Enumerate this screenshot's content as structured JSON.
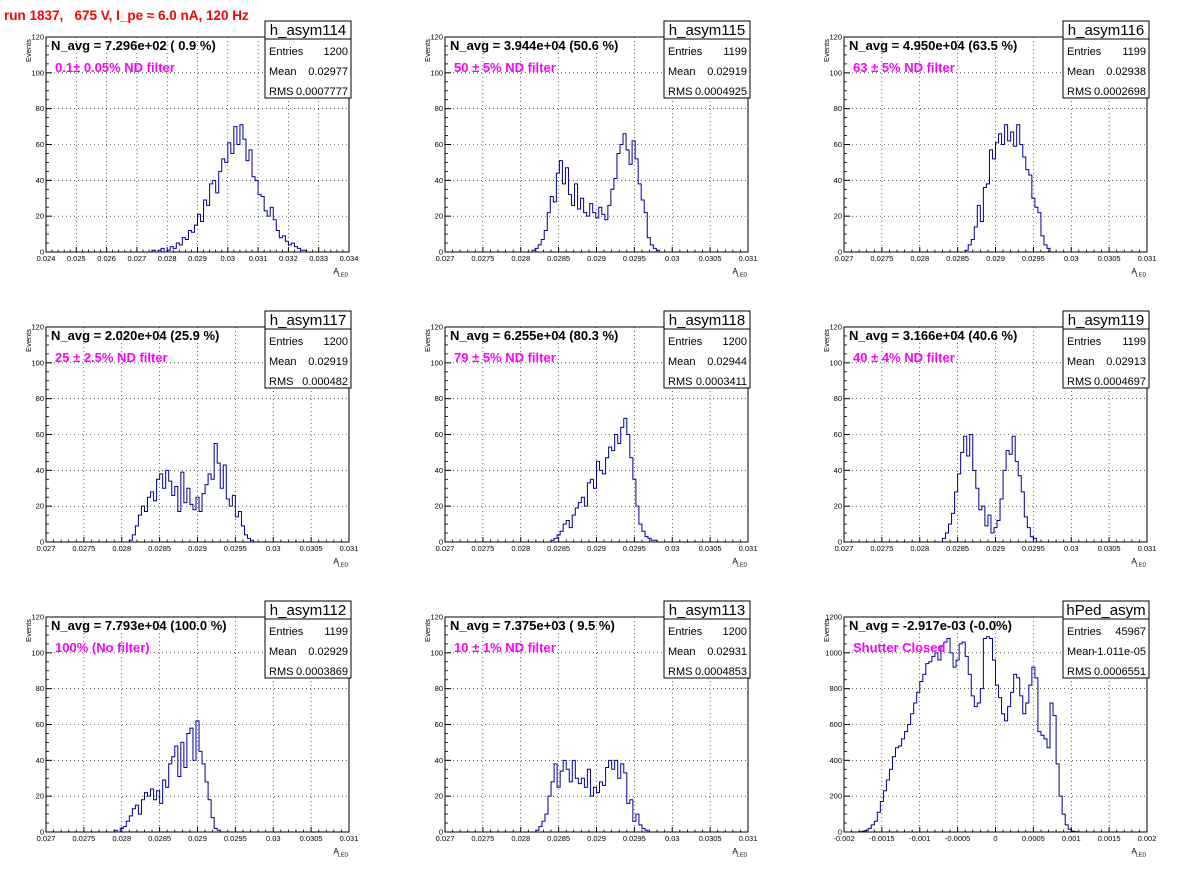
{
  "page_title": "run 1837,   675 V, I_pe ≈ 6.0 nA, 120 Hz",
  "colors": {
    "histogram": "#000099",
    "filter_label": "#ff00ff",
    "title": "#ff0000"
  },
  "chart_data": [
    {
      "type": "histogram",
      "name": "h_asym114",
      "annotation": "N_avg = 7.296e+02 ( 0.9 %)",
      "filter": "0.1± 0.05% ND filter",
      "stats": {
        "entries_label": "Entries",
        "entries": "1200",
        "mean_label": "Mean",
        "mean": "0.02977",
        "rms_label": "RMS",
        "rms": "0.0007777"
      },
      "ylabel": "Events",
      "xlabel": "A",
      "xlabel_sub": "LED",
      "xlim": [
        0.024,
        0.034
      ],
      "ylim": [
        0,
        120
      ],
      "grid": true,
      "xticks": [
        0.024,
        0.025,
        0.026,
        0.027,
        0.028,
        0.029,
        0.03,
        0.031,
        0.032,
        0.033,
        0.034
      ],
      "xtick_labels": [
        "0.024",
        "0.025",
        "0.026",
        "0.027",
        "0.028",
        "0.029",
        "0.03",
        "0.031",
        "0.032",
        "0.033",
        "0.034"
      ],
      "yticks": [
        0,
        20,
        40,
        60,
        80,
        100,
        120
      ],
      "ytick_labels": [
        "0",
        "20",
        "40",
        "60",
        "80",
        "100",
        "120"
      ],
      "bin_start": 0.0275,
      "bin_width": 0.0001,
      "values": [
        1,
        0,
        1,
        2,
        0,
        1,
        3,
        2,
        5,
        4,
        8,
        7,
        12,
        11,
        15,
        21,
        17,
        29,
        26,
        38,
        40,
        33,
        45,
        52,
        50,
        61,
        55,
        70,
        60,
        71,
        63,
        51,
        57,
        42,
        40,
        32,
        31,
        23,
        20,
        25,
        18,
        12,
        8,
        9,
        6,
        4,
        5,
        3,
        2,
        1,
        1
      ]
    },
    {
      "type": "histogram",
      "name": "h_asym115",
      "annotation": "N_avg = 3.944e+04 (50.6 %)",
      "filter": "50 ± 5% ND filter",
      "stats": {
        "entries_label": "Entries",
        "entries": "1199",
        "mean_label": "Mean",
        "mean": "0.02919",
        "rms_label": "RMS",
        "rms": "0.0004925"
      },
      "ylabel": "Events",
      "xlabel": "A",
      "xlabel_sub": "LED",
      "xlim": [
        0.027,
        0.031
      ],
      "ylim": [
        0,
        120
      ],
      "grid": true,
      "xticks": [
        0.027,
        0.0275,
        0.028,
        0.0285,
        0.029,
        0.0295,
        0.03,
        0.0305,
        0.031
      ],
      "xtick_labels": [
        "0.027",
        "0.0275",
        "0.028",
        "0.0285",
        "0.029",
        "0.0295",
        "0.03",
        "0.0305",
        "0.031"
      ],
      "yticks": [
        0,
        20,
        40,
        60,
        80,
        100,
        120
      ],
      "ytick_labels": [
        "0",
        "20",
        "40",
        "60",
        "80",
        "100",
        "120"
      ],
      "bin_start": 0.02815,
      "bin_width": 4e-05,
      "values": [
        1,
        2,
        4,
        7,
        12,
        22,
        31,
        28,
        44,
        51,
        38,
        47,
        32,
        26,
        38,
        24,
        30,
        22,
        20,
        27,
        22,
        19,
        25,
        21,
        18,
        26,
        35,
        41,
        55,
        60,
        66,
        57,
        49,
        62,
        52,
        38,
        29,
        22,
        8,
        4,
        2,
        1
      ]
    },
    {
      "type": "histogram",
      "name": "h_asym116",
      "annotation": "N_avg = 4.950e+04 (63.5 %)",
      "filter": "63 ± 5% ND filter",
      "stats": {
        "entries_label": "Entries",
        "entries": "1199",
        "mean_label": "Mean",
        "mean": "0.02938",
        "rms_label": "RMS",
        "rms": "0.0002698"
      },
      "ylabel": "Events",
      "xlabel": "A",
      "xlabel_sub": "LED",
      "xlim": [
        0.027,
        0.031
      ],
      "ylim": [
        0,
        120
      ],
      "grid": true,
      "xticks": [
        0.027,
        0.0275,
        0.028,
        0.0285,
        0.029,
        0.0295,
        0.03,
        0.0305,
        0.031
      ],
      "xtick_labels": [
        "0.027",
        "0.0275",
        "0.028",
        "0.0285",
        "0.029",
        "0.0295",
        "0.03",
        "0.0305",
        "0.031"
      ],
      "yticks": [
        0,
        20,
        40,
        60,
        80,
        100,
        120
      ],
      "ytick_labels": [
        "0",
        "20",
        "40",
        "60",
        "80",
        "100",
        "120"
      ],
      "bin_start": 0.0286,
      "bin_width": 4e-05,
      "values": [
        1,
        4,
        7,
        14,
        26,
        17,
        36,
        38,
        57,
        52,
        61,
        66,
        60,
        71,
        62,
        67,
        59,
        71,
        60,
        53,
        46,
        43,
        30,
        25,
        22,
        9,
        4,
        2
      ]
    },
    {
      "type": "histogram",
      "name": "h_asym117",
      "annotation": "N_avg = 2.020e+04 (25.9 %)",
      "filter": "25 ± 2.5% ND filter",
      "stats": {
        "entries_label": "Entries",
        "entries": "1200",
        "mean_label": "Mean",
        "mean": "0.02919",
        "rms_label": "RMS",
        "rms": "0.000482"
      },
      "ylabel": "Events",
      "xlabel": "A",
      "xlabel_sub": "LED",
      "xlim": [
        0.027,
        0.031
      ],
      "ylim": [
        0,
        120
      ],
      "grid": true,
      "xticks": [
        0.027,
        0.0275,
        0.028,
        0.0285,
        0.029,
        0.0295,
        0.03,
        0.0305,
        0.031
      ],
      "xtick_labels": [
        "0.027",
        "0.0275",
        "0.028",
        "0.0285",
        "0.029",
        "0.0295",
        "0.03",
        "0.0305",
        "0.031"
      ],
      "yticks": [
        0,
        20,
        40,
        60,
        80,
        100,
        120
      ],
      "ytick_labels": [
        "0",
        "20",
        "40",
        "60",
        "80",
        "100",
        "120"
      ],
      "bin_start": 0.0281,
      "bin_width": 4e-05,
      "values": [
        1,
        4,
        9,
        15,
        20,
        17,
        25,
        28,
        23,
        35,
        38,
        30,
        40,
        34,
        26,
        31,
        17,
        39,
        22,
        30,
        21,
        18,
        25,
        17,
        27,
        32,
        38,
        35,
        55,
        44,
        30,
        43,
        24,
        20,
        26,
        14,
        17,
        9,
        4,
        2,
        1
      ]
    },
    {
      "type": "histogram",
      "name": "h_asym118",
      "annotation": "N_avg = 6.255e+04 (80.3 %)",
      "filter": "79 ± 5% ND filter",
      "stats": {
        "entries_label": "Entries",
        "entries": "1200",
        "mean_label": "Mean",
        "mean": "0.02944",
        "rms_label": "RMS",
        "rms": "0.0003411"
      },
      "ylabel": "Events",
      "xlabel": "A",
      "xlabel_sub": "LED",
      "xlim": [
        0.027,
        0.031
      ],
      "ylim": [
        0,
        120
      ],
      "grid": true,
      "xticks": [
        0.027,
        0.0275,
        0.028,
        0.0285,
        0.029,
        0.0295,
        0.03,
        0.0305,
        0.031
      ],
      "xtick_labels": [
        "0.027",
        "0.0275",
        "0.028",
        "0.0285",
        "0.029",
        "0.0295",
        "0.03",
        "0.0305",
        "0.031"
      ],
      "yticks": [
        0,
        20,
        40,
        60,
        80,
        100,
        120
      ],
      "ytick_labels": [
        "0",
        "20",
        "40",
        "60",
        "80",
        "100",
        "120"
      ],
      "bin_start": 0.0284,
      "bin_width": 4e-05,
      "values": [
        1,
        2,
        4,
        6,
        10,
        12,
        8,
        15,
        19,
        22,
        25,
        20,
        33,
        35,
        30,
        45,
        40,
        38,
        47,
        53,
        51,
        60,
        55,
        64,
        69,
        60,
        47,
        35,
        20,
        10,
        6,
        3,
        2,
        1,
        1
      ]
    },
    {
      "type": "histogram",
      "name": "h_asym119",
      "annotation": "N_avg = 3.166e+04 (40.6 %)",
      "filter": "40 ± 4% ND filter",
      "stats": {
        "entries_label": "Entries",
        "entries": "1199",
        "mean_label": "Mean",
        "mean": "0.02913",
        "rms_label": "RMS",
        "rms": "0.0004697"
      },
      "ylabel": "Events",
      "xlabel": "A",
      "xlabel_sub": "LED",
      "xlim": [
        0.027,
        0.031
      ],
      "ylim": [
        0,
        120
      ],
      "grid": true,
      "xticks": [
        0.027,
        0.0275,
        0.028,
        0.0285,
        0.029,
        0.0295,
        0.03,
        0.0305,
        0.031
      ],
      "xtick_labels": [
        "0.027",
        "0.0275",
        "0.028",
        "0.0285",
        "0.029",
        "0.0295",
        "0.03",
        "0.0305",
        "0.031"
      ],
      "yticks": [
        0,
        20,
        40,
        60,
        80,
        100,
        120
      ],
      "ytick_labels": [
        "0",
        "20",
        "40",
        "60",
        "80",
        "100",
        "120"
      ],
      "bin_start": 0.0283,
      "bin_width": 4e-05,
      "values": [
        2,
        5,
        10,
        16,
        28,
        38,
        50,
        59,
        48,
        60,
        40,
        30,
        18,
        20,
        9,
        15,
        5,
        8,
        12,
        24,
        40,
        51,
        49,
        59,
        45,
        37,
        28,
        14,
        8,
        3,
        2
      ]
    },
    {
      "type": "histogram",
      "name": "h_asym112",
      "annotation": "N_avg = 7.793e+04 (100.0 %)",
      "filter": "100% (No filter)",
      "stats": {
        "entries_label": "Entries",
        "entries": "1199",
        "mean_label": "Mean",
        "mean": "0.02929",
        "rms_label": "RMS",
        "rms": "0.0003869"
      },
      "ylabel": "Events",
      "xlabel": "A",
      "xlabel_sub": "LED",
      "xlim": [
        0.027,
        0.031
      ],
      "ylim": [
        0,
        120
      ],
      "grid": true,
      "xticks": [
        0.027,
        0.0275,
        0.028,
        0.0285,
        0.029,
        0.0295,
        0.03,
        0.0305,
        0.031
      ],
      "xtick_labels": [
        "0.027",
        "0.0275",
        "0.028",
        "0.0285",
        "0.029",
        "0.0295",
        "0.03",
        "0.0305",
        "0.031"
      ],
      "yticks": [
        0,
        20,
        40,
        60,
        80,
        100,
        120
      ],
      "ytick_labels": [
        "0",
        "20",
        "40",
        "60",
        "80",
        "100",
        "120"
      ],
      "bin_start": 0.0279,
      "bin_width": 4e-05,
      "values": [
        1,
        0,
        2,
        3,
        6,
        9,
        13,
        15,
        10,
        18,
        22,
        20,
        24,
        18,
        23,
        16,
        29,
        25,
        38,
        42,
        48,
        31,
        50,
        36,
        55,
        58,
        40,
        62,
        45,
        38,
        28,
        18,
        8,
        2,
        1
      ]
    },
    {
      "type": "histogram",
      "name": "h_asym113",
      "annotation": "N_avg = 7.375e+03 ( 9.5 %)",
      "filter": "10 ± 1% ND filter",
      "stats": {
        "entries_label": "Entries",
        "entries": "1200",
        "mean_label": "Mean",
        "mean": "0.02931",
        "rms_label": "RMS",
        "rms": "0.0004853"
      },
      "ylabel": "Events",
      "xlabel": "A",
      "xlabel_sub": "LED",
      "xlim": [
        0.027,
        0.031
      ],
      "ylim": [
        0,
        120
      ],
      "grid": true,
      "xticks": [
        0.027,
        0.0275,
        0.028,
        0.0285,
        0.029,
        0.0295,
        0.03,
        0.0305,
        0.031
      ],
      "xtick_labels": [
        "0.027",
        "0.0275",
        "0.028",
        "0.0285",
        "0.029",
        "0.0295",
        "0.03",
        "0.0305",
        "0.031"
      ],
      "yticks": [
        0,
        20,
        40,
        60,
        80,
        100,
        120
      ],
      "ytick_labels": [
        "0",
        "20",
        "40",
        "60",
        "80",
        "100",
        "120"
      ],
      "bin_start": 0.0282,
      "bin_width": 4e-05,
      "values": [
        1,
        3,
        6,
        10,
        20,
        28,
        38,
        25,
        34,
        40,
        35,
        28,
        40,
        30,
        27,
        30,
        25,
        35,
        20,
        25,
        22,
        28,
        26,
        36,
        40,
        35,
        40,
        30,
        38,
        33,
        16,
        18,
        6,
        10,
        4,
        2,
        1
      ]
    },
    {
      "type": "histogram",
      "name": "hPed_asym",
      "annotation": "N_avg = -2.917e-03 (-0.0%)",
      "filter": "Shutter Closed",
      "stats": {
        "entries_label": "Entries",
        "entries": "45967",
        "mean_label": "Mean",
        "mean": "-1.011e-05",
        "rms_label": "RMS",
        "rms": "0.0006551"
      },
      "ylabel": "Events",
      "xlabel": "A",
      "xlabel_sub": "LED",
      "xlim": [
        -0.002,
        0.002
      ],
      "ylim": [
        0,
        1200
      ],
      "grid": true,
      "xticks": [
        -0.002,
        -0.0015,
        -0.001,
        -0.0005,
        0,
        0.0005,
        0.001,
        0.0015,
        0.002
      ],
      "xtick_labels": [
        "-0.002",
        "-0.0015",
        "-0.001",
        "-0.0005",
        "0",
        "0.0005",
        "0.001",
        "0.0015",
        "0.002"
      ],
      "yticks": [
        0,
        200,
        400,
        600,
        800,
        1000,
        1200
      ],
      "ytick_labels": [
        "0",
        "200",
        "400",
        "600",
        "800",
        "1000",
        "1200"
      ],
      "bin_start": -0.0018,
      "bin_width": 4e-05,
      "values": [
        2,
        5,
        10,
        20,
        40,
        60,
        110,
        170,
        230,
        290,
        350,
        420,
        470,
        480,
        520,
        560,
        600,
        660,
        720,
        780,
        840,
        880,
        940,
        950,
        980,
        1000,
        960,
        1040,
        1060,
        1080,
        1000,
        920,
        960,
        1050,
        1060,
        980,
        880,
        760,
        700,
        720,
        800,
        1080,
        1090,
        1080,
        960,
        820,
        750,
        660,
        620,
        700,
        780,
        880,
        860,
        760,
        660,
        720,
        820,
        920,
        860,
        560,
        540,
        520,
        470,
        720,
        650,
        380,
        200,
        100,
        40,
        15,
        5,
        2
      ]
    }
  ]
}
